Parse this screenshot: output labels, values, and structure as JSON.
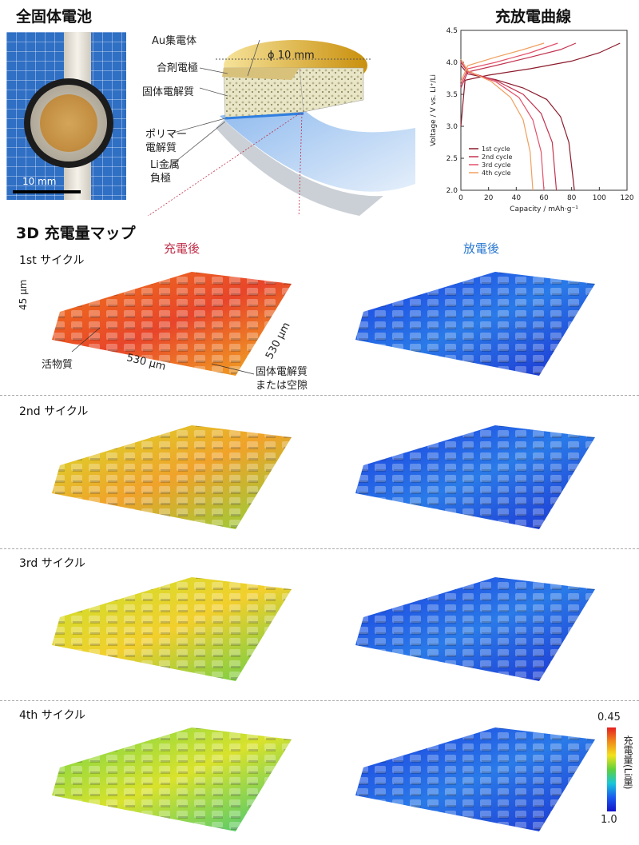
{
  "sections": {
    "battery": "全固体電池",
    "curves": "充放電曲線",
    "map": "3D 充電量マップ"
  },
  "photo": {
    "scale": "10 mm"
  },
  "schematic": {
    "au": "Au集電体",
    "cathode": "合剤電極",
    "electrolyte": "固体電解質",
    "polymer": "ポリマー\n電解質",
    "li": "Li金属\n負極",
    "diameter": "ϕ 10 mm"
  },
  "map_headers": {
    "charged": "充電後",
    "discharged": "放電後"
  },
  "cycles": [
    "1st サイクル",
    "2nd サイクル",
    "3rd サイクル",
    "4th サイクル"
  ],
  "dims": {
    "height": "45 μm",
    "width": "530 μm",
    "depth": "530 μm",
    "active": "活物質",
    "void": "固体電解質\nまたは空隙"
  },
  "colorbar": {
    "max": "0.45",
    "min": "1.0",
    "label": "充電量(Li量)"
  },
  "chart_data": {
    "type": "line",
    "xlabel": "Capacity / mAh·g⁻¹",
    "ylabel": "Voltage / V vs. Li⁺/Li",
    "xlim": [
      0,
      120
    ],
    "ylim": [
      2.0,
      4.5
    ],
    "xticks": [
      0,
      20,
      40,
      60,
      80,
      100,
      120
    ],
    "yticks": [
      2.0,
      2.5,
      3.0,
      3.5,
      4.0,
      4.5
    ],
    "legend_position": "bottom-left",
    "series": [
      {
        "name": "1st cycle",
        "color": "#8b1a2b",
        "charge": [
          [
            0,
            3.0
          ],
          [
            3,
            3.72
          ],
          [
            20,
            3.8
          ],
          [
            50,
            3.9
          ],
          [
            80,
            4.02
          ],
          [
            100,
            4.15
          ],
          [
            115,
            4.3
          ]
        ],
        "discharge": [
          [
            0,
            3.95
          ],
          [
            5,
            3.82
          ],
          [
            25,
            3.73
          ],
          [
            45,
            3.6
          ],
          [
            62,
            3.42
          ],
          [
            72,
            3.15
          ],
          [
            78,
            2.75
          ],
          [
            82,
            2.0
          ]
        ]
      },
      {
        "name": "2nd cycle",
        "color": "#c2334f",
        "charge": [
          [
            0,
            3.6
          ],
          [
            5,
            3.85
          ],
          [
            25,
            3.95
          ],
          [
            50,
            4.08
          ],
          [
            72,
            4.2
          ],
          [
            83,
            4.3
          ]
        ],
        "discharge": [
          [
            0,
            4.0
          ],
          [
            5,
            3.85
          ],
          [
            25,
            3.72
          ],
          [
            45,
            3.5
          ],
          [
            58,
            3.2
          ],
          [
            66,
            2.75
          ],
          [
            69,
            2.0
          ]
        ]
      },
      {
        "name": "3rd cycle",
        "color": "#e3506a",
        "charge": [
          [
            0,
            3.65
          ],
          [
            5,
            3.9
          ],
          [
            25,
            4.0
          ],
          [
            50,
            4.15
          ],
          [
            70,
            4.3
          ]
        ],
        "discharge": [
          [
            0,
            4.02
          ],
          [
            5,
            3.85
          ],
          [
            25,
            3.7
          ],
          [
            42,
            3.45
          ],
          [
            52,
            3.1
          ],
          [
            58,
            2.6
          ],
          [
            60,
            2.0
          ]
        ]
      },
      {
        "name": "4th cycle",
        "color": "#f0a060",
        "charge": [
          [
            0,
            3.7
          ],
          [
            5,
            3.95
          ],
          [
            25,
            4.08
          ],
          [
            45,
            4.2
          ],
          [
            60,
            4.3
          ]
        ],
        "discharge": [
          [
            0,
            4.05
          ],
          [
            5,
            3.87
          ],
          [
            22,
            3.7
          ],
          [
            36,
            3.45
          ],
          [
            45,
            3.1
          ],
          [
            50,
            2.6
          ],
          [
            52,
            2.0
          ]
        ]
      }
    ]
  }
}
